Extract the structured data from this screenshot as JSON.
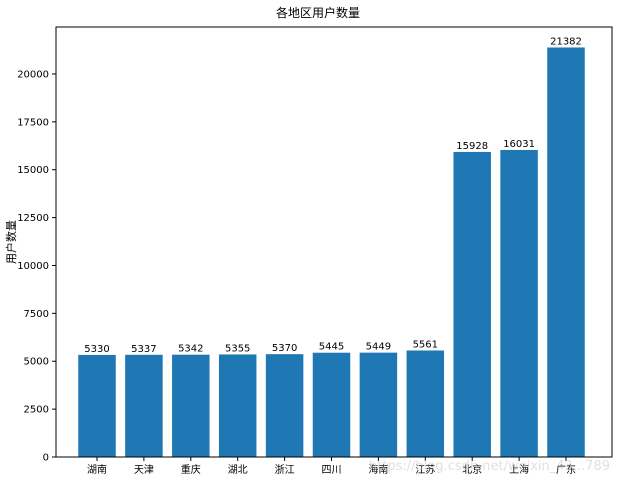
{
  "chart_data": {
    "type": "bar",
    "title": "各地区用户数量",
    "xlabel": "",
    "ylabel": "用户数量",
    "categories": [
      "湖南",
      "天津",
      "重庆",
      "湖北",
      "浙江",
      "四川",
      "海南",
      "江苏",
      "北京",
      "上海",
      "广东"
    ],
    "values": [
      5330,
      5337,
      5342,
      5355,
      5370,
      5445,
      5449,
      5561,
      15928,
      16031,
      21382
    ],
    "data_labels": [
      "5330",
      "5337",
      "5342",
      "5355",
      "5370",
      "5445",
      "5449",
      "5561",
      "15928",
      "16031",
      "21382"
    ],
    "ylim": [
      0,
      22452
    ],
    "yticks": [
      0,
      2500,
      5000,
      7500,
      10000,
      12500,
      15000,
      17500,
      20000
    ],
    "ytick_labels": [
      "0",
      "2500",
      "5000",
      "7500",
      "10000",
      "12500",
      "15000",
      "17500",
      "20000"
    ],
    "grid": false,
    "bar_color": "#1f77b4"
  },
  "watermark": "https://blog.csdn.net/weixin_43...789"
}
